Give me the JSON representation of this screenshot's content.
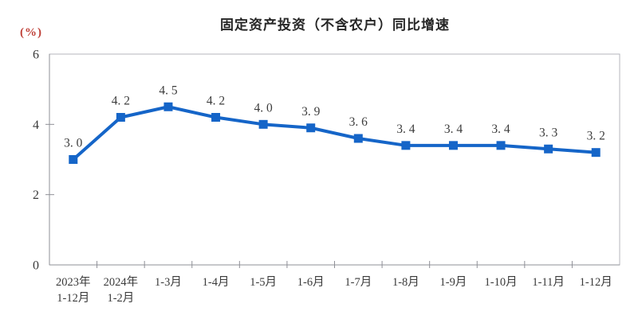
{
  "chart_data": {
    "type": "line",
    "title": "固定资产投资（不含农户）同比增速",
    "unit_label": "(%)",
    "categories": [
      [
        "2023年",
        "1-12月"
      ],
      [
        "2024年",
        "1-2月"
      ],
      [
        "1-3月"
      ],
      [
        "1-4月"
      ],
      [
        "1-5月"
      ],
      [
        "1-6月"
      ],
      [
        "1-7月"
      ],
      [
        "1-8月"
      ],
      [
        "1-9月"
      ],
      [
        "1-10月"
      ],
      [
        "1-11月"
      ],
      [
        "1-12月"
      ]
    ],
    "values": [
      3.0,
      4.2,
      4.5,
      4.2,
      4.0,
      3.9,
      3.6,
      3.4,
      3.4,
      3.4,
      3.3,
      3.2
    ],
    "xlabel": "",
    "ylabel": "(%)",
    "ylim": [
      0,
      6
    ],
    "yticks": [
      0,
      2,
      4,
      6
    ],
    "grid": false,
    "legend": "none",
    "colors": {
      "line": "#1565c8",
      "marker": "#1565c8",
      "title_text": "#262626",
      "unit_text": "#bf4038",
      "tick_text": "#3a3a3a",
      "data_label_text": "#3c3c3c",
      "border": "#b4b6bc",
      "axis": "#8f9097"
    }
  }
}
